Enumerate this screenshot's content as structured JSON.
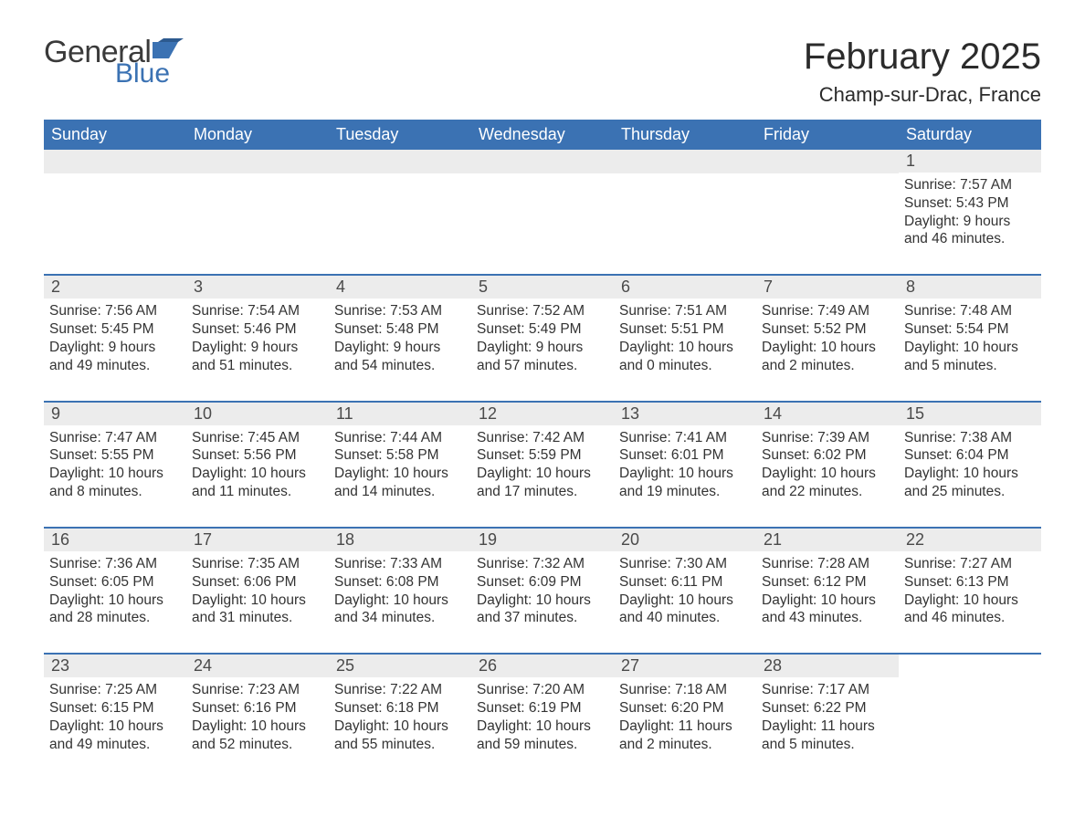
{
  "brand": {
    "general": "General",
    "blue": "Blue",
    "accent_color": "#3b72b3"
  },
  "title": "February 2025",
  "location": "Champ-sur-Drac, France",
  "header_bg": "#3b72b3",
  "strip_bg": "#ececec",
  "text_color": "#333333",
  "weekdays": [
    "Sunday",
    "Monday",
    "Tuesday",
    "Wednesday",
    "Thursday",
    "Friday",
    "Saturday"
  ],
  "weeks": [
    [
      null,
      null,
      null,
      null,
      null,
      null,
      {
        "n": "1",
        "sunrise": "Sunrise: 7:57 AM",
        "sunset": "Sunset: 5:43 PM",
        "day1": "Daylight: 9 hours",
        "day2": "and 46 minutes."
      }
    ],
    [
      {
        "n": "2",
        "sunrise": "Sunrise: 7:56 AM",
        "sunset": "Sunset: 5:45 PM",
        "day1": "Daylight: 9 hours",
        "day2": "and 49 minutes."
      },
      {
        "n": "3",
        "sunrise": "Sunrise: 7:54 AM",
        "sunset": "Sunset: 5:46 PM",
        "day1": "Daylight: 9 hours",
        "day2": "and 51 minutes."
      },
      {
        "n": "4",
        "sunrise": "Sunrise: 7:53 AM",
        "sunset": "Sunset: 5:48 PM",
        "day1": "Daylight: 9 hours",
        "day2": "and 54 minutes."
      },
      {
        "n": "5",
        "sunrise": "Sunrise: 7:52 AM",
        "sunset": "Sunset: 5:49 PM",
        "day1": "Daylight: 9 hours",
        "day2": "and 57 minutes."
      },
      {
        "n": "6",
        "sunrise": "Sunrise: 7:51 AM",
        "sunset": "Sunset: 5:51 PM",
        "day1": "Daylight: 10 hours",
        "day2": "and 0 minutes."
      },
      {
        "n": "7",
        "sunrise": "Sunrise: 7:49 AM",
        "sunset": "Sunset: 5:52 PM",
        "day1": "Daylight: 10 hours",
        "day2": "and 2 minutes."
      },
      {
        "n": "8",
        "sunrise": "Sunrise: 7:48 AM",
        "sunset": "Sunset: 5:54 PM",
        "day1": "Daylight: 10 hours",
        "day2": "and 5 minutes."
      }
    ],
    [
      {
        "n": "9",
        "sunrise": "Sunrise: 7:47 AM",
        "sunset": "Sunset: 5:55 PM",
        "day1": "Daylight: 10 hours",
        "day2": "and 8 minutes."
      },
      {
        "n": "10",
        "sunrise": "Sunrise: 7:45 AM",
        "sunset": "Sunset: 5:56 PM",
        "day1": "Daylight: 10 hours",
        "day2": "and 11 minutes."
      },
      {
        "n": "11",
        "sunrise": "Sunrise: 7:44 AM",
        "sunset": "Sunset: 5:58 PM",
        "day1": "Daylight: 10 hours",
        "day2": "and 14 minutes."
      },
      {
        "n": "12",
        "sunrise": "Sunrise: 7:42 AM",
        "sunset": "Sunset: 5:59 PM",
        "day1": "Daylight: 10 hours",
        "day2": "and 17 minutes."
      },
      {
        "n": "13",
        "sunrise": "Sunrise: 7:41 AM",
        "sunset": "Sunset: 6:01 PM",
        "day1": "Daylight: 10 hours",
        "day2": "and 19 minutes."
      },
      {
        "n": "14",
        "sunrise": "Sunrise: 7:39 AM",
        "sunset": "Sunset: 6:02 PM",
        "day1": "Daylight: 10 hours",
        "day2": "and 22 minutes."
      },
      {
        "n": "15",
        "sunrise": "Sunrise: 7:38 AM",
        "sunset": "Sunset: 6:04 PM",
        "day1": "Daylight: 10 hours",
        "day2": "and 25 minutes."
      }
    ],
    [
      {
        "n": "16",
        "sunrise": "Sunrise: 7:36 AM",
        "sunset": "Sunset: 6:05 PM",
        "day1": "Daylight: 10 hours",
        "day2": "and 28 minutes."
      },
      {
        "n": "17",
        "sunrise": "Sunrise: 7:35 AM",
        "sunset": "Sunset: 6:06 PM",
        "day1": "Daylight: 10 hours",
        "day2": "and 31 minutes."
      },
      {
        "n": "18",
        "sunrise": "Sunrise: 7:33 AM",
        "sunset": "Sunset: 6:08 PM",
        "day1": "Daylight: 10 hours",
        "day2": "and 34 minutes."
      },
      {
        "n": "19",
        "sunrise": "Sunrise: 7:32 AM",
        "sunset": "Sunset: 6:09 PM",
        "day1": "Daylight: 10 hours",
        "day2": "and 37 minutes."
      },
      {
        "n": "20",
        "sunrise": "Sunrise: 7:30 AM",
        "sunset": "Sunset: 6:11 PM",
        "day1": "Daylight: 10 hours",
        "day2": "and 40 minutes."
      },
      {
        "n": "21",
        "sunrise": "Sunrise: 7:28 AM",
        "sunset": "Sunset: 6:12 PM",
        "day1": "Daylight: 10 hours",
        "day2": "and 43 minutes."
      },
      {
        "n": "22",
        "sunrise": "Sunrise: 7:27 AM",
        "sunset": "Sunset: 6:13 PM",
        "day1": "Daylight: 10 hours",
        "day2": "and 46 minutes."
      }
    ],
    [
      {
        "n": "23",
        "sunrise": "Sunrise: 7:25 AM",
        "sunset": "Sunset: 6:15 PM",
        "day1": "Daylight: 10 hours",
        "day2": "and 49 minutes."
      },
      {
        "n": "24",
        "sunrise": "Sunrise: 7:23 AM",
        "sunset": "Sunset: 6:16 PM",
        "day1": "Daylight: 10 hours",
        "day2": "and 52 minutes."
      },
      {
        "n": "25",
        "sunrise": "Sunrise: 7:22 AM",
        "sunset": "Sunset: 6:18 PM",
        "day1": "Daylight: 10 hours",
        "day2": "and 55 minutes."
      },
      {
        "n": "26",
        "sunrise": "Sunrise: 7:20 AM",
        "sunset": "Sunset: 6:19 PM",
        "day1": "Daylight: 10 hours",
        "day2": "and 59 minutes."
      },
      {
        "n": "27",
        "sunrise": "Sunrise: 7:18 AM",
        "sunset": "Sunset: 6:20 PM",
        "day1": "Daylight: 11 hours",
        "day2": "and 2 minutes."
      },
      {
        "n": "28",
        "sunrise": "Sunrise: 7:17 AM",
        "sunset": "Sunset: 6:22 PM",
        "day1": "Daylight: 11 hours",
        "day2": "and 5 minutes."
      },
      null
    ]
  ]
}
